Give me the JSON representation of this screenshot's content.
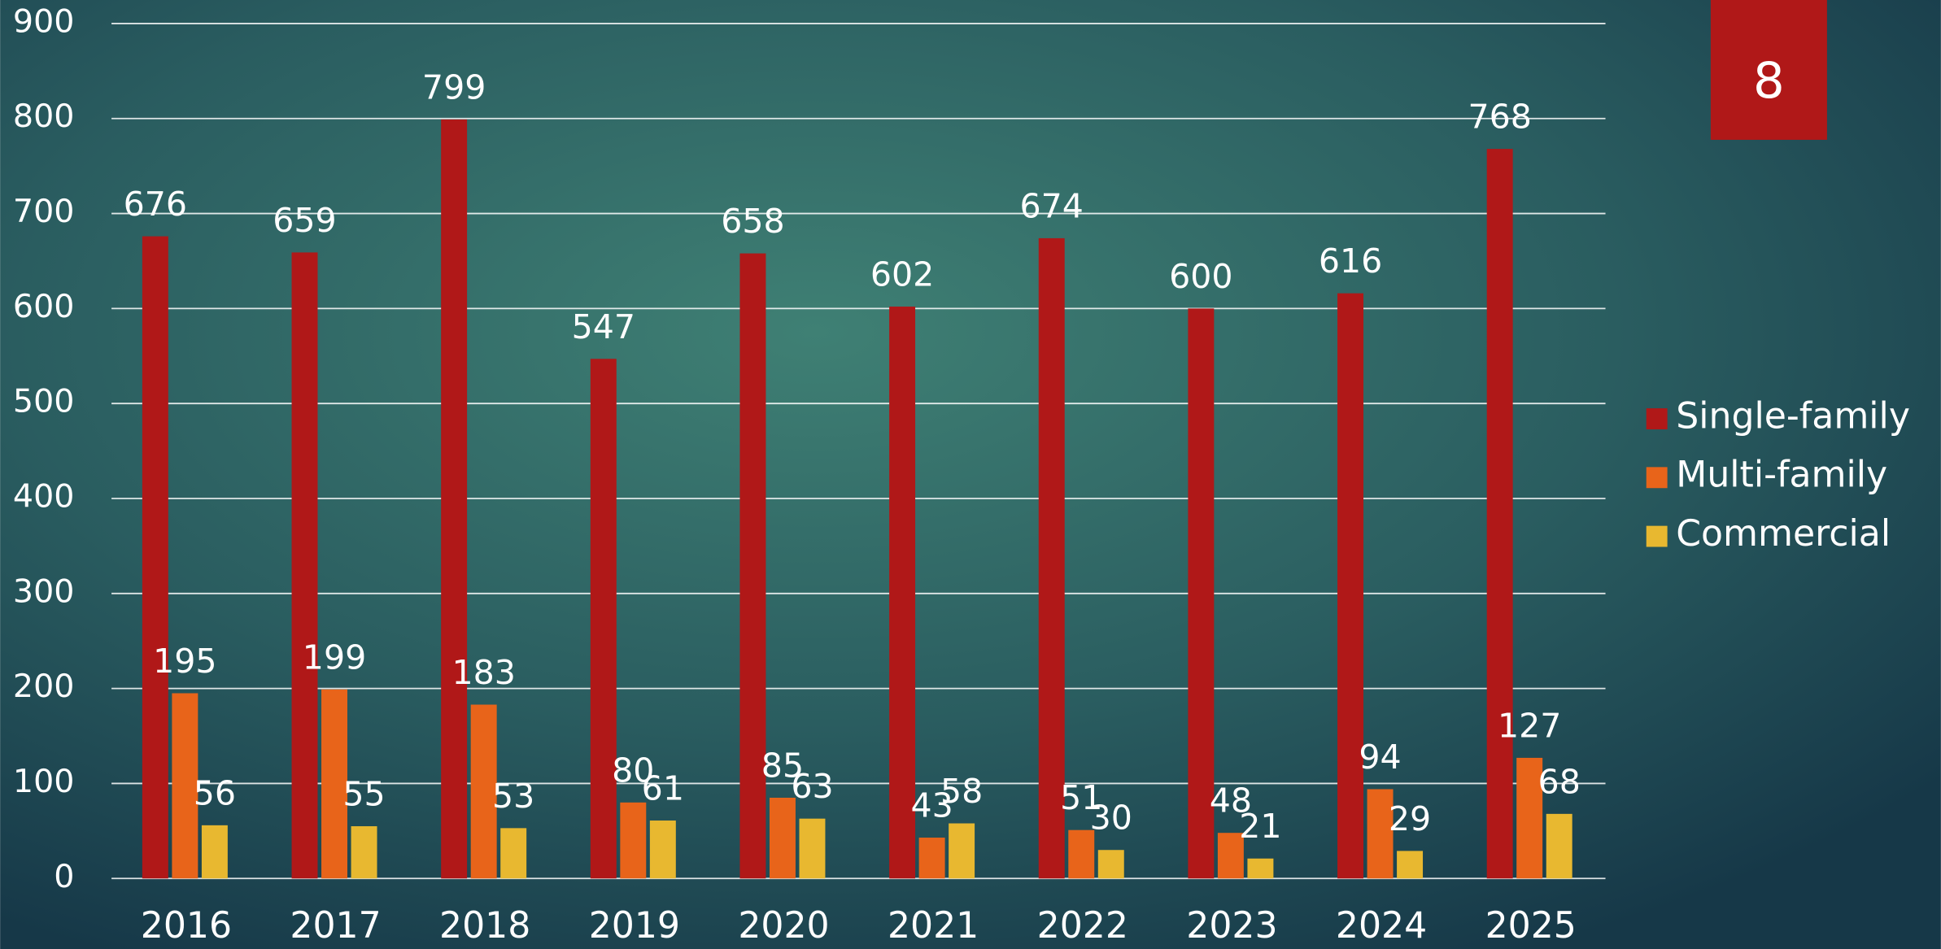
{
  "slide_number": "8",
  "chart_data": {
    "type": "bar",
    "categories": [
      "2016",
      "2017",
      "2018",
      "2019",
      "2020",
      "2021",
      "2022",
      "2023",
      "2024",
      "2025"
    ],
    "series": [
      {
        "name": "Single-family",
        "color": "#b01818",
        "values": [
          676,
          659,
          799,
          547,
          658,
          602,
          674,
          600,
          616,
          768
        ]
      },
      {
        "name": "Multi-family",
        "color": "#e8641a",
        "values": [
          195,
          199,
          183,
          80,
          85,
          43,
          51,
          48,
          94,
          127
        ]
      },
      {
        "name": "Commercial",
        "color": "#e8b830",
        "values": [
          56,
          55,
          53,
          61,
          63,
          58,
          30,
          21,
          29,
          68
        ]
      }
    ],
    "ylim": [
      0,
      900
    ],
    "yticks": [
      0,
      100,
      200,
      300,
      400,
      500,
      600,
      700,
      800,
      900
    ],
    "grid": true,
    "legend": "right"
  }
}
